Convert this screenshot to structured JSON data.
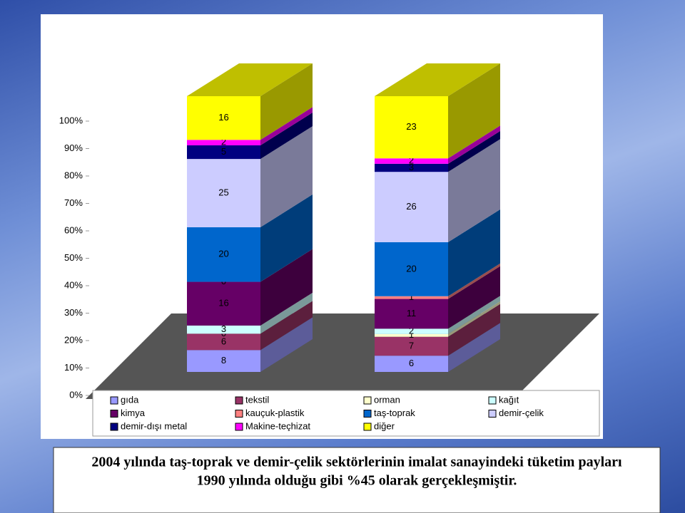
{
  "chart_data": {
    "type": "stacked-bar-3d",
    "stacking": "percent",
    "categories": [
      null,
      null
    ],
    "series": [
      {
        "name": "gıda",
        "color": "#9999ff",
        "values": [
          8,
          6
        ]
      },
      {
        "name": "tekstil",
        "color": "#993366",
        "values": [
          6,
          7
        ]
      },
      {
        "name": "orman",
        "color": "#ffffcc",
        "values": [
          0,
          1
        ]
      },
      {
        "name": "kağıt",
        "color": "#ccffff",
        "values": [
          3,
          2
        ]
      },
      {
        "name": "kimya",
        "color": "#660066",
        "values": [
          16,
          11
        ]
      },
      {
        "name": "kauçuk-plastik",
        "color": "#ff8080",
        "values": [
          0,
          1
        ]
      },
      {
        "name": "taş-toprak",
        "color": "#0066cc",
        "values": [
          20,
          20
        ]
      },
      {
        "name": "demir-çelik",
        "color": "#ccccff",
        "values": [
          25,
          26
        ]
      },
      {
        "name": "demir-dışı metal",
        "color": "#000080",
        "values": [
          5,
          3
        ]
      },
      {
        "name": "Makine-teçhizat",
        "color": "#ff00ff",
        "values": [
          2,
          2
        ]
      },
      {
        "name": "diğer",
        "color": "#ffff00",
        "values": [
          16,
          23
        ]
      }
    ],
    "ylim": [
      0,
      100
    ],
    "yticks": [
      {
        "value": 0,
        "label": "0%"
      },
      {
        "value": 10,
        "label": "10%"
      },
      {
        "value": 20,
        "label": "20%"
      },
      {
        "value": 30,
        "label": "30%"
      },
      {
        "value": 40,
        "label": "40%"
      },
      {
        "value": 50,
        "label": "50%"
      },
      {
        "value": 60,
        "label": "60%"
      },
      {
        "value": 70,
        "label": "70%"
      },
      {
        "value": 80,
        "label": "80%"
      },
      {
        "value": 90,
        "label": "90%"
      },
      {
        "value": 100,
        "label": "100%"
      }
    ],
    "legend": "bottom",
    "annotations": [
      "2004 yılında taş-toprak ve demir-çelik sektörlerinin imalat sanayindeki tüketim payları",
      "1990 yılında olduğu gibi %45 olarak gerçekleşmiştir."
    ]
  }
}
